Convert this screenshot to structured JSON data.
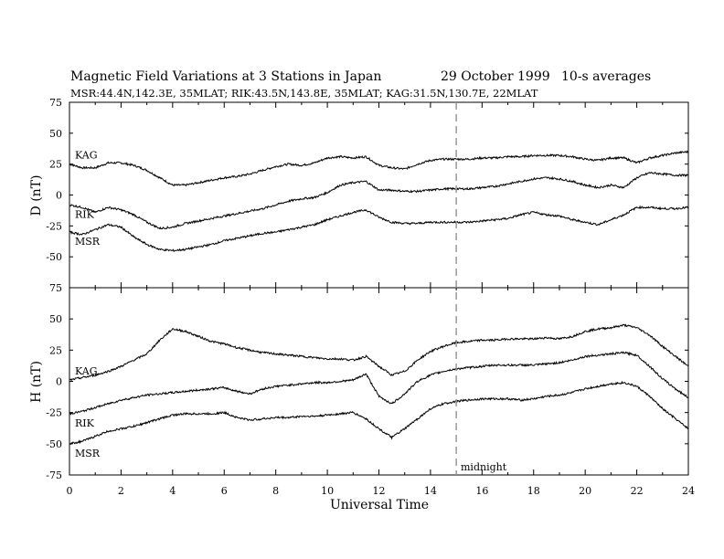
{
  "title": "Magnetic Field Variations at 3 Stations in Japan",
  "date": "29 October 1999",
  "averaging": "10-s averages",
  "stations_line": "MSR:44.4N,142.3E, 35MLAT;   RIK:43.5N,143.8E, 35MLAT;   KAG:31.5N,130.7E, 22MLAT",
  "colors": {
    "trace": "#000000",
    "midnight_line": "#999999",
    "axes": "#000000",
    "background": "#ffffff"
  },
  "chart_data": [
    {
      "type": "line",
      "panel": "D",
      "ylabel": "D (nT)",
      "xlabel": "",
      "ylim": [
        -75,
        75
      ],
      "yticks": [
        75,
        50,
        25,
        0,
        -25,
        -50,
        -75
      ],
      "xlim": [
        0,
        24
      ],
      "series": [
        {
          "name": "KAG",
          "x": [
            0,
            0.5,
            1,
            1.5,
            2,
            2.5,
            3,
            3.5,
            4,
            4.5,
            5,
            5.5,
            6,
            6.5,
            7,
            7.5,
            8,
            8.5,
            9,
            9.5,
            10,
            10.5,
            11,
            11.5,
            12,
            12.5,
            13,
            13.5,
            14,
            14.5,
            15,
            15.5,
            16,
            16.5,
            17,
            17.5,
            18,
            18.5,
            19,
            19.5,
            20,
            20.5,
            21,
            21.5,
            22,
            22.5,
            23,
            23.5,
            24
          ],
          "y": [
            25,
            22,
            22,
            26,
            26,
            24,
            20,
            14,
            8,
            8,
            10,
            12,
            14,
            15,
            17,
            20,
            23,
            25,
            24,
            26,
            30,
            31,
            30,
            31,
            24,
            22,
            21,
            25,
            28,
            29,
            29,
            29,
            30,
            30,
            31,
            31,
            32,
            32,
            32,
            31,
            29,
            28,
            30,
            30,
            26,
            30,
            32,
            34,
            35
          ]
        },
        {
          "name": "RIK",
          "x": [
            0,
            0.5,
            1,
            1.5,
            2,
            2.5,
            3,
            3.5,
            4,
            4.5,
            5,
            5.5,
            6,
            6.5,
            7,
            7.5,
            8,
            8.5,
            9,
            9.5,
            10,
            10.5,
            11,
            11.5,
            12,
            12.5,
            13,
            13.5,
            14,
            14.5,
            15,
            15.5,
            16,
            16.5,
            17,
            17.5,
            18,
            18.5,
            19,
            19.5,
            20,
            20.5,
            21,
            21.5,
            22,
            22.5,
            23,
            23.5,
            24
          ],
          "y": [
            -8,
            -10,
            -14,
            -10,
            -12,
            -16,
            -22,
            -27,
            -26,
            -23,
            -21,
            -19,
            -17,
            -15,
            -13,
            -11,
            -8,
            -5,
            -3,
            -2,
            2,
            8,
            10,
            11,
            4,
            4,
            3,
            3,
            4,
            5,
            5,
            5,
            6,
            7,
            9,
            11,
            13,
            14,
            13,
            11,
            8,
            6,
            8,
            6,
            14,
            18,
            17,
            16,
            16
          ]
        },
        {
          "name": "MSR",
          "x": [
            0,
            0.5,
            1,
            1.5,
            2,
            2.5,
            3,
            3.5,
            4,
            4.5,
            5,
            5.5,
            6,
            6.5,
            7,
            7.5,
            8,
            8.5,
            9,
            9.5,
            10,
            10.5,
            11,
            11.5,
            12,
            12.5,
            13,
            13.5,
            14,
            14.5,
            15,
            15.5,
            16,
            16.5,
            17,
            17.5,
            18,
            18.5,
            19,
            19.5,
            20,
            20.5,
            21,
            21.5,
            22,
            22.5,
            23,
            23.5,
            24
          ],
          "y": [
            -30,
            -32,
            -28,
            -24,
            -26,
            -34,
            -40,
            -44,
            -45,
            -44,
            -42,
            -40,
            -37,
            -35,
            -33,
            -31,
            -30,
            -28,
            -26,
            -24,
            -20,
            -17,
            -14,
            -12,
            -18,
            -22,
            -23,
            -23,
            -22,
            -22,
            -22,
            -22,
            -21,
            -20,
            -19,
            -16,
            -14,
            -16,
            -17,
            -20,
            -22,
            -24,
            -20,
            -16,
            -10,
            -10,
            -11,
            -11,
            -10
          ]
        }
      ]
    },
    {
      "type": "line",
      "panel": "H",
      "ylabel": "H (nT)",
      "xlabel": "Universal Time",
      "ylim": [
        -75,
        75
      ],
      "yticks": [
        75,
        50,
        25,
        0,
        -25,
        -50,
        -75
      ],
      "xlim": [
        0,
        24
      ],
      "xticks": [
        0,
        2,
        4,
        6,
        8,
        10,
        12,
        14,
        16,
        18,
        20,
        22,
        24
      ],
      "series": [
        {
          "name": "KAG",
          "x": [
            0,
            0.5,
            1,
            1.5,
            2,
            2.5,
            3,
            3.5,
            4,
            4.5,
            5,
            5.5,
            6,
            6.5,
            7,
            7.5,
            8,
            8.5,
            9,
            9.5,
            10,
            10.5,
            11,
            11.5,
            12,
            12.5,
            13,
            13.5,
            14,
            14.5,
            15,
            15.5,
            16,
            16.5,
            17,
            17.5,
            18,
            18.5,
            19,
            19.5,
            20,
            20.5,
            21,
            21.5,
            22,
            22.5,
            23,
            23.5,
            24
          ],
          "y": [
            1,
            3,
            5,
            8,
            12,
            17,
            22,
            33,
            42,
            40,
            36,
            32,
            30,
            27,
            25,
            23,
            22,
            21,
            20,
            19,
            18,
            18,
            17,
            20,
            12,
            5,
            8,
            17,
            24,
            28,
            31,
            32,
            33,
            33,
            34,
            34,
            34,
            35,
            34,
            36,
            40,
            42,
            43,
            45,
            43,
            37,
            28,
            20,
            12
          ]
        },
        {
          "name": "RIK",
          "x": [
            0,
            0.5,
            1,
            1.5,
            2,
            2.5,
            3,
            3.5,
            4,
            4.5,
            5,
            5.5,
            6,
            6.5,
            7,
            7.5,
            8,
            8.5,
            9,
            9.5,
            10,
            10.5,
            11,
            11.5,
            12,
            12.5,
            13,
            13.5,
            14,
            14.5,
            15,
            15.5,
            16,
            16.5,
            17,
            17.5,
            18,
            18.5,
            19,
            19.5,
            20,
            20.5,
            21,
            21.5,
            22,
            22.5,
            23,
            23.5,
            24
          ],
          "y": [
            -26,
            -24,
            -21,
            -18,
            -15,
            -13,
            -11,
            -10,
            -9,
            -8,
            -7,
            -6,
            -5,
            -8,
            -10,
            -6,
            -4,
            -3,
            -2,
            -1,
            -1,
            0,
            1,
            6,
            -12,
            -18,
            -10,
            0,
            5,
            8,
            10,
            11,
            12,
            13,
            13,
            13,
            13,
            14,
            15,
            17,
            20,
            21,
            22,
            23,
            21,
            12,
            2,
            -6,
            -13
          ]
        },
        {
          "name": "MSR",
          "x": [
            0,
            0.5,
            1,
            1.5,
            2,
            2.5,
            3,
            3.5,
            4,
            4.5,
            5,
            5.5,
            6,
            6.5,
            7,
            7.5,
            8,
            8.5,
            9,
            9.5,
            10,
            10.5,
            11,
            11.5,
            12,
            12.5,
            13,
            13.5,
            14,
            14.5,
            15,
            15.5,
            16,
            16.5,
            17,
            17.5,
            18,
            18.5,
            19,
            19.5,
            20,
            20.5,
            21,
            21.5,
            22,
            22.5,
            23,
            23.5,
            24
          ],
          "y": [
            -50,
            -48,
            -44,
            -40,
            -38,
            -36,
            -33,
            -30,
            -27,
            -26,
            -26,
            -26,
            -25,
            -29,
            -31,
            -30,
            -29,
            -29,
            -28,
            -28,
            -27,
            -26,
            -25,
            -30,
            -38,
            -45,
            -38,
            -30,
            -22,
            -18,
            -16,
            -15,
            -14,
            -14,
            -14,
            -15,
            -14,
            -12,
            -11,
            -9,
            -6,
            -4,
            -2,
            -1,
            -4,
            -12,
            -22,
            -30,
            -38
          ]
        }
      ]
    }
  ],
  "annotations": {
    "midnight": "midnight"
  },
  "midnight_ut": 15
}
